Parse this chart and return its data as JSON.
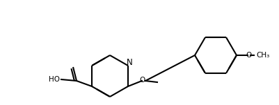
{
  "bg_color": "#ffffff",
  "bond_color": "#000000",
  "bond_lw": 1.5,
  "font_size": 7.5,
  "fig_width": 4.01,
  "fig_height": 1.52,
  "dpi": 100,
  "atoms": {
    "N": {
      "label": "N",
      "color": "#000080"
    },
    "O": {
      "label": "O",
      "color": "#000000"
    },
    "HO": {
      "label": "HO",
      "color": "#000000"
    }
  },
  "bond_color_dark": "#1a1a1a"
}
